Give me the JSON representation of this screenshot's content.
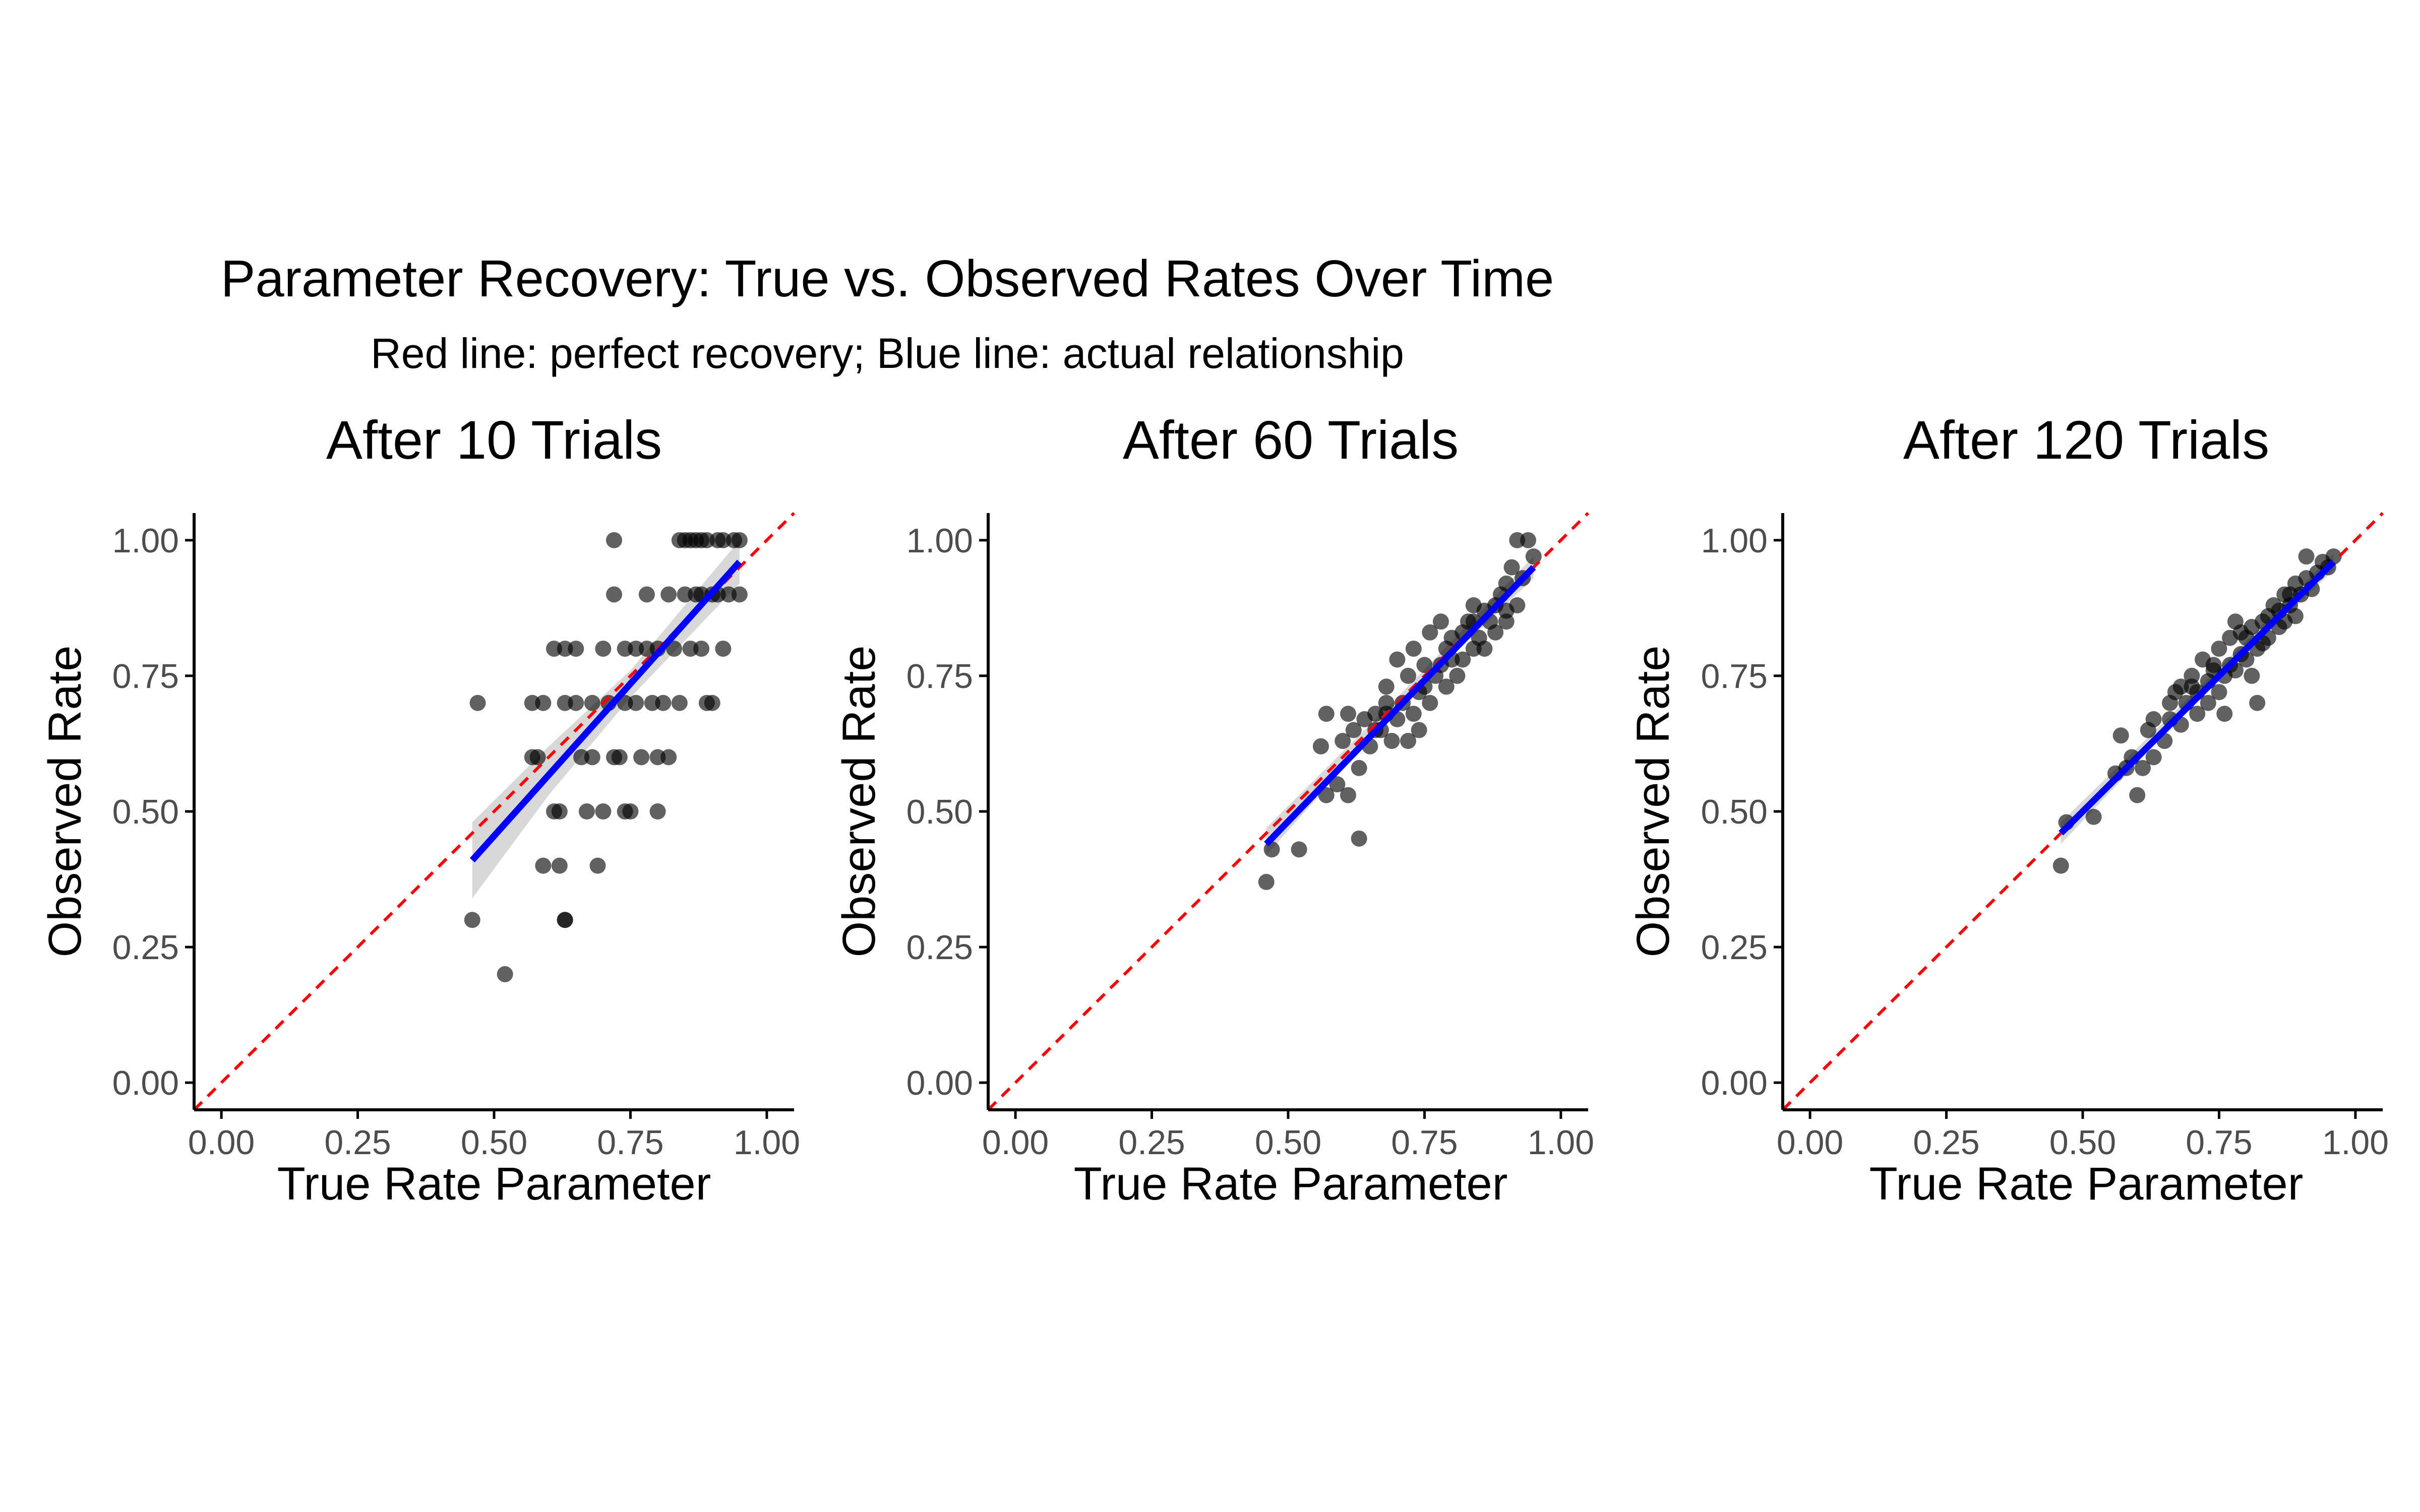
{
  "title": "Parameter Recovery: True vs. Observed Rates Over Time",
  "subtitle": "Red line: perfect recovery; Blue line: actual relationship",
  "colors": {
    "points": "#000000",
    "identity_line": "#ff0000",
    "fit_line": "#0000ff",
    "ribbon": "#bebebe",
    "axis": "#000000",
    "tick_text": "#4d4d4d"
  },
  "chart_data": [
    {
      "type": "scatter",
      "title": "After 10 Trials",
      "xlabel": "True Rate Parameter",
      "ylabel": "Observed Rate",
      "xlim": [
        -0.05,
        1.05
      ],
      "ylim": [
        -0.05,
        1.05
      ],
      "x_ticks": [
        "0.00",
        "0.25",
        "0.50",
        "0.75",
        "1.00"
      ],
      "y_ticks": [
        "0.00",
        "0.25",
        "0.50",
        "0.75",
        "1.00"
      ],
      "grid": false,
      "identity_line": {
        "slope": 1,
        "intercept": 0,
        "style": "dashed"
      },
      "fit_line": {
        "x": [
          0.46,
          0.95
        ],
        "y": [
          0.41,
          0.96
        ]
      },
      "ribbon": {
        "x": [
          0.46,
          0.6,
          0.75,
          0.95
        ],
        "lower": [
          0.34,
          0.53,
          0.71,
          0.92
        ],
        "upper": [
          0.48,
          0.62,
          0.76,
          1.0
        ]
      },
      "points": [
        [
          0.46,
          0.3
        ],
        [
          0.47,
          0.7
        ],
        [
          0.52,
          0.2
        ],
        [
          0.57,
          0.6
        ],
        [
          0.58,
          0.6
        ],
        [
          0.57,
          0.7
        ],
        [
          0.59,
          0.7
        ],
        [
          0.59,
          0.4
        ],
        [
          0.62,
          0.5
        ],
        [
          0.61,
          0.5
        ],
        [
          0.62,
          0.4
        ],
        [
          0.63,
          0.3
        ],
        [
          0.63,
          0.3
        ],
        [
          0.61,
          0.8
        ],
        [
          0.63,
          0.8
        ],
        [
          0.65,
          0.7
        ],
        [
          0.65,
          0.8
        ],
        [
          0.66,
          0.6
        ],
        [
          0.67,
          0.5
        ],
        [
          0.68,
          0.7
        ],
        [
          0.69,
          0.4
        ],
        [
          0.7,
          0.8
        ],
        [
          0.7,
          0.5
        ],
        [
          0.71,
          0.7
        ],
        [
          0.72,
          0.6
        ],
        [
          0.72,
          0.9
        ],
        [
          0.73,
          0.6
        ],
        [
          0.74,
          0.7
        ],
        [
          0.74,
          0.8
        ],
        [
          0.75,
          0.5
        ],
        [
          0.76,
          0.7
        ],
        [
          0.76,
          0.8
        ],
        [
          0.77,
          0.6
        ],
        [
          0.78,
          0.8
        ],
        [
          0.78,
          0.9
        ],
        [
          0.79,
          0.7
        ],
        [
          0.8,
          0.6
        ],
        [
          0.8,
          0.5
        ],
        [
          0.8,
          0.8
        ],
        [
          0.81,
          0.7
        ],
        [
          0.82,
          0.6
        ],
        [
          0.82,
          0.9
        ],
        [
          0.83,
          0.8
        ],
        [
          0.84,
          0.7
        ],
        [
          0.84,
          1.0
        ],
        [
          0.85,
          0.9
        ],
        [
          0.85,
          1.0
        ],
        [
          0.86,
          0.8
        ],
        [
          0.86,
          1.0
        ],
        [
          0.87,
          0.9
        ],
        [
          0.87,
          1.0
        ],
        [
          0.88,
          0.9
        ],
        [
          0.88,
          1.0
        ],
        [
          0.89,
          0.7
        ],
        [
          0.89,
          1.0
        ],
        [
          0.9,
          0.9
        ],
        [
          0.9,
          0.7
        ],
        [
          0.91,
          1.0
        ],
        [
          0.91,
          0.9
        ],
        [
          0.92,
          1.0
        ],
        [
          0.92,
          0.8
        ],
        [
          0.93,
          0.9
        ],
        [
          0.94,
          1.0
        ],
        [
          0.95,
          0.9
        ],
        [
          0.95,
          1.0
        ],
        [
          0.72,
          1.0
        ],
        [
          0.68,
          0.6
        ],
        [
          0.74,
          0.5
        ],
        [
          0.63,
          0.7
        ],
        [
          0.88,
          0.8
        ]
      ]
    },
    {
      "type": "scatter",
      "title": "After 60 Trials",
      "xlabel": "True Rate Parameter",
      "ylabel": "Observed Rate",
      "xlim": [
        -0.05,
        1.05
      ],
      "ylim": [
        -0.05,
        1.05
      ],
      "x_ticks": [
        "0.00",
        "0.25",
        "0.50",
        "0.75",
        "1.00"
      ],
      "y_ticks": [
        "0.00",
        "0.25",
        "0.50",
        "0.75",
        "1.00"
      ],
      "grid": false,
      "identity_line": {
        "slope": 1,
        "intercept": 0,
        "style": "dashed"
      },
      "fit_line": {
        "x": [
          0.46,
          0.95
        ],
        "y": [
          0.44,
          0.95
        ]
      },
      "ribbon": {
        "x": [
          0.46,
          0.7,
          0.95
        ],
        "lower": [
          0.42,
          0.69,
          0.93
        ],
        "upper": [
          0.47,
          0.71,
          0.97
        ]
      },
      "points": [
        [
          0.46,
          0.37
        ],
        [
          0.47,
          0.43
        ],
        [
          0.52,
          0.43
        ],
        [
          0.56,
          0.62
        ],
        [
          0.57,
          0.68
        ],
        [
          0.57,
          0.53
        ],
        [
          0.59,
          0.55
        ],
        [
          0.6,
          0.63
        ],
        [
          0.61,
          0.53
        ],
        [
          0.61,
          0.68
        ],
        [
          0.62,
          0.65
        ],
        [
          0.63,
          0.45
        ],
        [
          0.63,
          0.58
        ],
        [
          0.64,
          0.67
        ],
        [
          0.65,
          0.62
        ],
        [
          0.66,
          0.68
        ],
        [
          0.67,
          0.65
        ],
        [
          0.68,
          0.7
        ],
        [
          0.68,
          0.73
        ],
        [
          0.69,
          0.63
        ],
        [
          0.7,
          0.67
        ],
        [
          0.7,
          0.78
        ],
        [
          0.71,
          0.7
        ],
        [
          0.72,
          0.75
        ],
        [
          0.72,
          0.63
        ],
        [
          0.73,
          0.8
        ],
        [
          0.73,
          0.68
        ],
        [
          0.74,
          0.72
        ],
        [
          0.75,
          0.73
        ],
        [
          0.75,
          0.77
        ],
        [
          0.76,
          0.83
        ],
        [
          0.76,
          0.7
        ],
        [
          0.77,
          0.75
        ],
        [
          0.78,
          0.77
        ],
        [
          0.78,
          0.85
        ],
        [
          0.79,
          0.73
        ],
        [
          0.8,
          0.78
        ],
        [
          0.8,
          0.82
        ],
        [
          0.81,
          0.75
        ],
        [
          0.82,
          0.83
        ],
        [
          0.82,
          0.78
        ],
        [
          0.83,
          0.85
        ],
        [
          0.84,
          0.88
        ],
        [
          0.84,
          0.8
        ],
        [
          0.85,
          0.82
        ],
        [
          0.86,
          0.87
        ],
        [
          0.86,
          0.8
        ],
        [
          0.87,
          0.85
        ],
        [
          0.88,
          0.88
        ],
        [
          0.88,
          0.83
        ],
        [
          0.89,
          0.9
        ],
        [
          0.9,
          0.87
        ],
        [
          0.9,
          0.92
        ],
        [
          0.91,
          0.95
        ],
        [
          0.92,
          0.88
        ],
        [
          0.92,
          1.0
        ],
        [
          0.93,
          0.93
        ],
        [
          0.94,
          1.0
        ],
        [
          0.95,
          0.97
        ],
        [
          0.9,
          0.85
        ],
        [
          0.74,
          0.65
        ],
        [
          0.68,
          0.68
        ],
        [
          0.79,
          0.8
        ],
        [
          0.84,
          0.85
        ],
        [
          0.66,
          0.65
        ]
      ]
    },
    {
      "type": "scatter",
      "title": "After 120 Trials",
      "xlabel": "True Rate Parameter",
      "ylabel": "Observed Rate",
      "xlim": [
        -0.05,
        1.05
      ],
      "ylim": [
        -0.05,
        1.05
      ],
      "x_ticks": [
        "0.00",
        "0.25",
        "0.50",
        "0.75",
        "1.00"
      ],
      "y_ticks": [
        "0.00",
        "0.25",
        "0.50",
        "0.75",
        "1.00"
      ],
      "grid": false,
      "identity_line": {
        "slope": 1,
        "intercept": 0,
        "style": "dashed"
      },
      "fit_line": {
        "x": [
          0.46,
          0.96
        ],
        "y": [
          0.46,
          0.96
        ]
      },
      "ribbon": {
        "x": [
          0.46,
          0.7,
          0.96
        ],
        "lower": [
          0.44,
          0.695,
          0.945
        ],
        "upper": [
          0.48,
          0.715,
          0.975
        ]
      },
      "points": [
        [
          0.46,
          0.4
        ],
        [
          0.47,
          0.48
        ],
        [
          0.52,
          0.49
        ],
        [
          0.56,
          0.57
        ],
        [
          0.57,
          0.64
        ],
        [
          0.58,
          0.58
        ],
        [
          0.59,
          0.6
        ],
        [
          0.6,
          0.53
        ],
        [
          0.61,
          0.58
        ],
        [
          0.62,
          0.65
        ],
        [
          0.63,
          0.6
        ],
        [
          0.63,
          0.67
        ],
        [
          0.65,
          0.63
        ],
        [
          0.66,
          0.7
        ],
        [
          0.67,
          0.72
        ],
        [
          0.68,
          0.66
        ],
        [
          0.68,
          0.73
        ],
        [
          0.69,
          0.7
        ],
        [
          0.7,
          0.75
        ],
        [
          0.71,
          0.72
        ],
        [
          0.71,
          0.68
        ],
        [
          0.72,
          0.78
        ],
        [
          0.73,
          0.7
        ],
        [
          0.73,
          0.74
        ],
        [
          0.74,
          0.77
        ],
        [
          0.75,
          0.72
        ],
        [
          0.75,
          0.8
        ],
        [
          0.76,
          0.75
        ],
        [
          0.76,
          0.68
        ],
        [
          0.77,
          0.82
        ],
        [
          0.77,
          0.77
        ],
        [
          0.78,
          0.76
        ],
        [
          0.78,
          0.85
        ],
        [
          0.79,
          0.79
        ],
        [
          0.8,
          0.78
        ],
        [
          0.8,
          0.82
        ],
        [
          0.81,
          0.75
        ],
        [
          0.81,
          0.84
        ],
        [
          0.82,
          0.8
        ],
        [
          0.82,
          0.7
        ],
        [
          0.83,
          0.85
        ],
        [
          0.84,
          0.82
        ],
        [
          0.84,
          0.86
        ],
        [
          0.85,
          0.88
        ],
        [
          0.86,
          0.84
        ],
        [
          0.86,
          0.87
        ],
        [
          0.87,
          0.9
        ],
        [
          0.87,
          0.85
        ],
        [
          0.88,
          0.88
        ],
        [
          0.89,
          0.92
        ],
        [
          0.89,
          0.86
        ],
        [
          0.9,
          0.9
        ],
        [
          0.91,
          0.93
        ],
        [
          0.91,
          0.97
        ],
        [
          0.92,
          0.91
        ],
        [
          0.93,
          0.94
        ],
        [
          0.94,
          0.96
        ],
        [
          0.95,
          0.95
        ],
        [
          0.96,
          0.97
        ],
        [
          0.7,
          0.73
        ],
        [
          0.74,
          0.76
        ],
        [
          0.66,
          0.67
        ],
        [
          0.83,
          0.81
        ],
        [
          0.79,
          0.83
        ],
        [
          0.88,
          0.9
        ]
      ]
    }
  ]
}
